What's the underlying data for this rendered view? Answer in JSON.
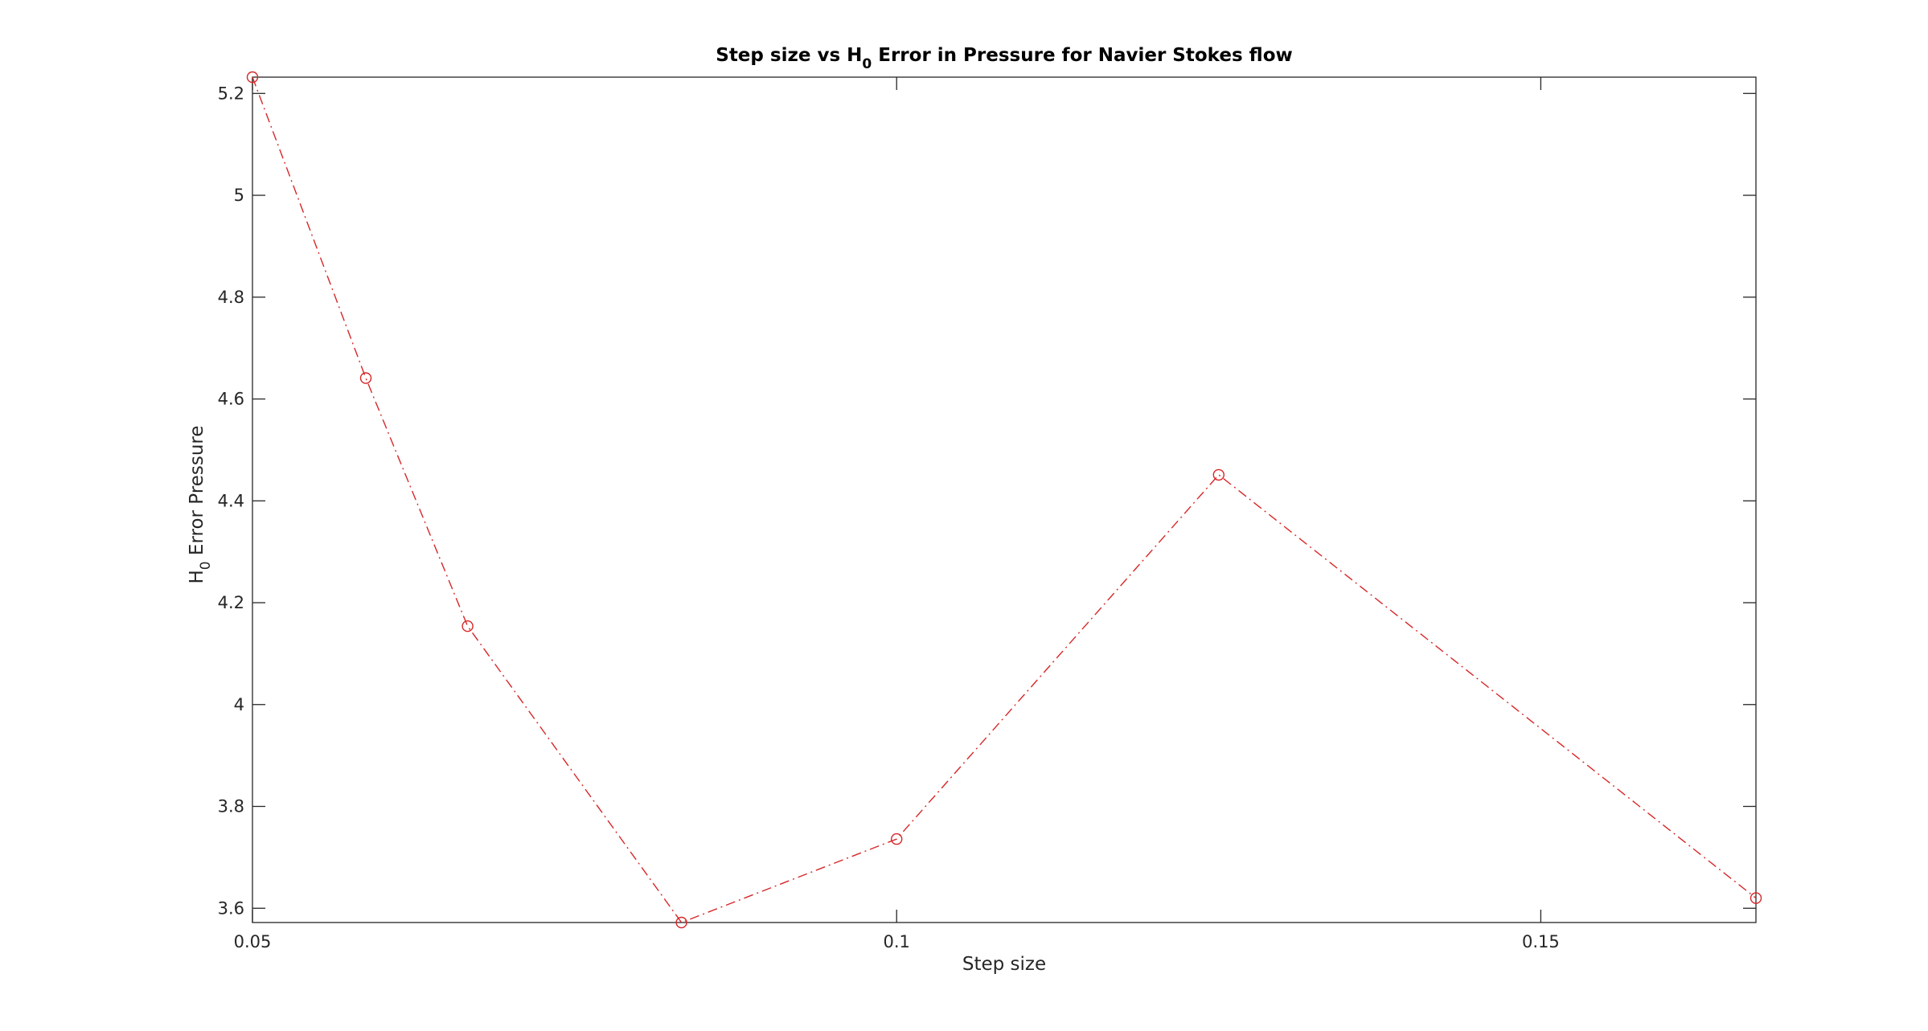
{
  "chart_data": {
    "type": "line",
    "title": {
      "pre": "Step size vs H",
      "sub": "0",
      "post": " Error in Pressure for Navier Stokes flow"
    },
    "xlabel": "Step size",
    "ylabel": {
      "pre": "H",
      "sub": "0",
      "post": " Error Pressure"
    },
    "xlim": [
      0.05,
      0.1667
    ],
    "ylim": [
      3.572,
      5.232
    ],
    "xticks": [
      {
        "value": 0.05,
        "label": "0.05"
      },
      {
        "value": 0.1,
        "label": "0.1"
      },
      {
        "value": 0.15,
        "label": "0.15"
      }
    ],
    "yticks": [
      {
        "value": 3.6,
        "label": "3.6"
      },
      {
        "value": 3.8,
        "label": "3.8"
      },
      {
        "value": 4.0,
        "label": "4"
      },
      {
        "value": 4.2,
        "label": "4.2"
      },
      {
        "value": 4.4,
        "label": "4.4"
      },
      {
        "value": 4.6,
        "label": "4.6"
      },
      {
        "value": 4.8,
        "label": "4.8"
      },
      {
        "value": 5.0,
        "label": "5"
      },
      {
        "value": 5.2,
        "label": "5.2"
      }
    ],
    "grid": false,
    "series": [
      {
        "x": [
          0.05,
          0.0588,
          0.0667,
          0.0833,
          0.1,
          0.125,
          0.1667
        ],
        "y": [
          5.232,
          4.641,
          4.154,
          3.572,
          3.736,
          4.451,
          3.62
        ],
        "color": "#d62728",
        "line_style": "dash-dot",
        "marker": "circle"
      }
    ]
  }
}
